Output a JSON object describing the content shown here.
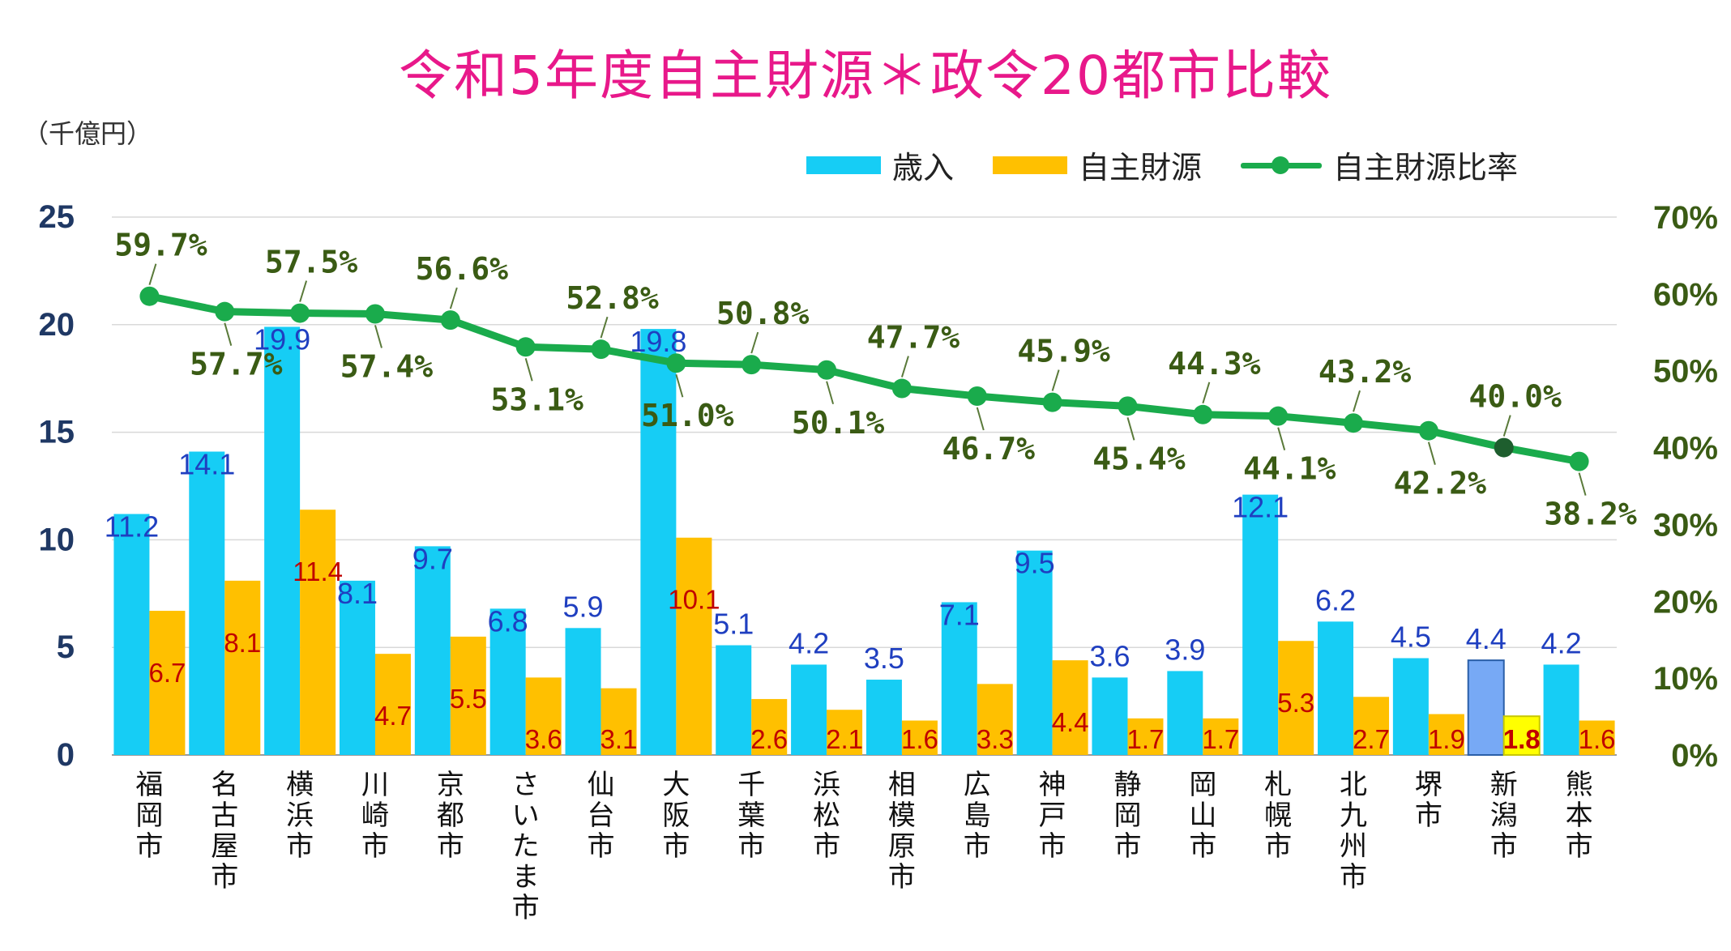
{
  "title": "令和5年度自主財源＊政令20都市比較",
  "unit_label": "（千億円）",
  "legend": {
    "revenue": "歳入",
    "own_source": "自主財源",
    "ratio": "自主財源比率"
  },
  "colors": {
    "revenue": "#16cdf5",
    "own_source": "#ffc000",
    "ratio": "#1aab4c",
    "highlight_revenue": "#77a9f5",
    "highlight_own_source": "#ffff00",
    "revenue_label": "#1f3fc0",
    "own_label": "#c00000",
    "ratio_label": "#3a5b14",
    "left_axis": "#1f3864",
    "right_axis": "#3a5b14"
  },
  "chart_data": {
    "type": "bar",
    "categories": [
      "福岡市",
      "名古屋市",
      "横浜市",
      "川崎市",
      "京都市",
      "さいたま市",
      "仙台市",
      "大阪市",
      "千葉市",
      "浜松市",
      "相模原市",
      "広島市",
      "神戸市",
      "静岡市",
      "岡山市",
      "札幌市",
      "北九州市",
      "堺市",
      "新潟市",
      "熊本市"
    ],
    "series": [
      {
        "name": "歳入",
        "axis": "left",
        "values": [
          11.2,
          14.1,
          19.9,
          8.1,
          9.7,
          6.8,
          5.9,
          19.8,
          5.1,
          4.2,
          3.5,
          7.1,
          9.5,
          3.6,
          3.9,
          12.1,
          6.2,
          4.5,
          4.4,
          4.2
        ]
      },
      {
        "name": "自主財源",
        "axis": "left",
        "values": [
          6.7,
          8.1,
          11.4,
          4.7,
          5.5,
          3.6,
          3.1,
          10.1,
          2.6,
          2.1,
          1.6,
          3.3,
          4.4,
          1.7,
          1.7,
          5.3,
          2.7,
          1.9,
          1.8,
          1.6
        ]
      },
      {
        "name": "自主財源比率",
        "type": "line",
        "axis": "right",
        "values": [
          59.7,
          57.7,
          57.5,
          57.4,
          56.6,
          53.1,
          52.8,
          51.0,
          50.8,
          50.1,
          47.7,
          46.7,
          45.9,
          45.4,
          44.3,
          44.1,
          43.2,
          42.2,
          40.0,
          38.2
        ]
      }
    ],
    "ratio_labels": [
      "59.7%",
      "57.7%",
      "57.5%",
      "57.4%",
      "56.6%",
      "53.1%",
      "52.8%",
      "51.0%",
      "50.8%",
      "50.1%",
      "47.7%",
      "46.7%",
      "45.9%",
      "45.4%",
      "44.3%",
      "44.1%",
      "43.2%",
      "42.2%",
      "40.0%",
      "38.2%"
    ],
    "highlight_category": "新潟市",
    "y_left": {
      "range": [
        0,
        25
      ],
      "ticks": [
        "0",
        "5",
        "10",
        "15",
        "20",
        "25"
      ]
    },
    "y_right": {
      "range": [
        0,
        70
      ],
      "ticks": [
        "0%",
        "10%",
        "20%",
        "30%",
        "40%",
        "50%",
        "60%",
        "70%"
      ]
    },
    "grid": true,
    "legend_position": "top-right"
  }
}
